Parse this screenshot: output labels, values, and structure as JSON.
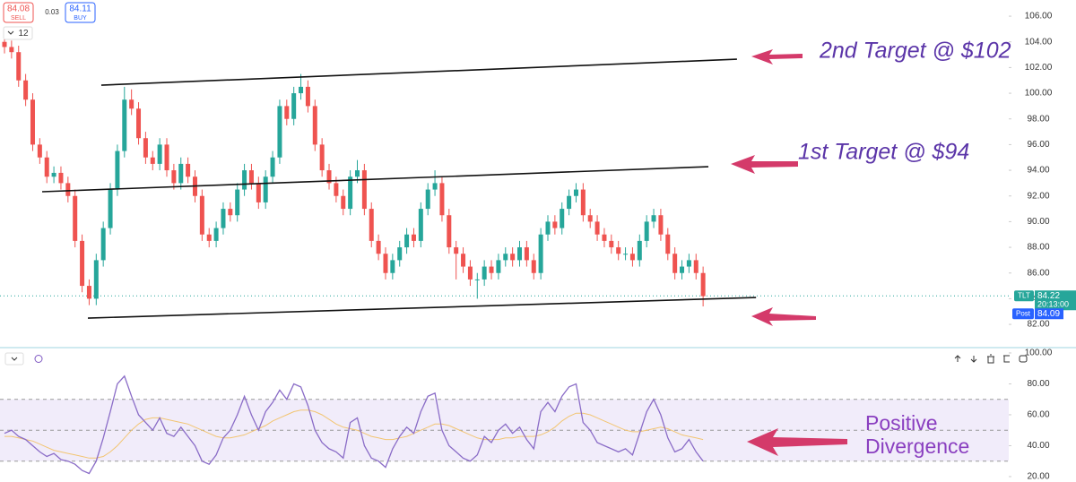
{
  "toolbar": {
    "sell_price": "84.08",
    "sell_label": "SELL",
    "spread": "0.03",
    "buy_price": "84.11",
    "buy_label": "BUY",
    "interval": "12"
  },
  "chart_data": [
    {
      "type": "candlestick",
      "symbol": "TLT",
      "last_price": 84.22,
      "countdown": "20:13:00",
      "post_label": "Post",
      "post_price": 84.09,
      "up_color": "#26a69a",
      "down_color": "#ef5350",
      "ylim": [
        80.4,
        107.26
      ],
      "yticks": [
        {
          "value": 82,
          "label": "82.00"
        },
        {
          "value": 84,
          "label": "84.00"
        },
        {
          "value": 86,
          "label": "86.00"
        },
        {
          "value": 88,
          "label": "88.00"
        },
        {
          "value": 90,
          "label": "90.00"
        },
        {
          "value": 92,
          "label": "92.00"
        },
        {
          "value": 94,
          "label": "94.00"
        },
        {
          "value": 96,
          "label": "96.00"
        },
        {
          "value": 98,
          "label": "98.00"
        },
        {
          "value": 100,
          "label": "100.00"
        },
        {
          "value": 102,
          "label": "102.00"
        },
        {
          "value": 104,
          "label": "104.00"
        },
        {
          "value": 106,
          "label": "106.00"
        }
      ],
      "candles": [
        [
          104.0,
          104.5,
          103.1,
          103.6
        ],
        [
          103.6,
          104.1,
          102.7,
          103.2
        ],
        [
          103.2,
          103.7,
          100.5,
          101.0
        ],
        [
          101.0,
          101.5,
          99.0,
          99.5
        ],
        [
          99.5,
          100.0,
          95.5,
          96.0
        ],
        [
          96.0,
          96.5,
          94.5,
          95.0
        ],
        [
          95.0,
          95.5,
          93.0,
          93.5
        ],
        [
          93.5,
          94.3,
          93.0,
          93.8
        ],
        [
          93.8,
          94.3,
          92.5,
          93.0
        ],
        [
          93.0,
          93.5,
          91.5,
          92.0
        ],
        [
          92.0,
          92.5,
          88.0,
          88.5
        ],
        [
          88.5,
          89.0,
          84.5,
          85.0
        ],
        [
          85.0,
          85.5,
          83.5,
          84.0
        ],
        [
          84.0,
          87.5,
          83.5,
          87.0
        ],
        [
          87.0,
          90.0,
          86.5,
          89.5
        ],
        [
          89.5,
          93.0,
          89.0,
          92.5
        ],
        [
          92.5,
          96.0,
          92.0,
          95.5
        ],
        [
          95.5,
          100.5,
          95.0,
          99.5
        ],
        [
          99.5,
          100.3,
          98.3,
          98.8
        ],
        [
          98.8,
          99.3,
          96.0,
          96.5
        ],
        [
          96.5,
          97.0,
          94.5,
          95.0
        ],
        [
          95.0,
          95.5,
          94.0,
          94.5
        ],
        [
          94.5,
          96.5,
          94.0,
          96.0
        ],
        [
          96.0,
          96.5,
          93.5,
          94.0
        ],
        [
          94.0,
          94.5,
          92.5,
          93.0
        ],
        [
          93.0,
          95.0,
          92.5,
          94.5
        ],
        [
          94.5,
          95.0,
          93.0,
          93.5
        ],
        [
          93.5,
          94.0,
          91.5,
          92.0
        ],
        [
          92.0,
          92.5,
          88.5,
          89.0
        ],
        [
          89.0,
          89.5,
          88.0,
          88.5
        ],
        [
          88.5,
          90.0,
          88.0,
          89.5
        ],
        [
          89.5,
          91.5,
          89.0,
          91.0
        ],
        [
          91.0,
          91.5,
          90.0,
          90.5
        ],
        [
          90.5,
          93.0,
          90.0,
          92.5
        ],
        [
          92.5,
          94.5,
          92.0,
          94.0
        ],
        [
          94.0,
          94.5,
          92.5,
          93.0
        ],
        [
          93.0,
          93.5,
          91.0,
          91.5
        ],
        [
          91.5,
          94.0,
          91.0,
          93.5
        ],
        [
          93.5,
          95.5,
          93.0,
          95.0
        ],
        [
          95.0,
          99.5,
          94.5,
          99.0
        ],
        [
          99.0,
          99.5,
          97.5,
          98.0
        ],
        [
          98.0,
          100.5,
          97.5,
          100.0
        ],
        [
          100.0,
          101.5,
          99.5,
          100.5
        ],
        [
          100.5,
          101.0,
          98.5,
          99.0
        ],
        [
          99.0,
          99.5,
          95.5,
          96.0
        ],
        [
          96.0,
          96.5,
          93.5,
          94.0
        ],
        [
          94.0,
          94.5,
          92.5,
          93.0
        ],
        [
          93.0,
          93.5,
          91.5,
          92.0
        ],
        [
          92.0,
          92.5,
          90.5,
          91.0
        ],
        [
          91.0,
          94.0,
          90.5,
          93.5
        ],
        [
          93.5,
          94.8,
          93.0,
          94.0
        ],
        [
          94.0,
          94.5,
          90.5,
          91.0
        ],
        [
          91.0,
          91.5,
          88.0,
          88.5
        ],
        [
          88.5,
          89.0,
          87.0,
          87.5
        ],
        [
          87.5,
          88.0,
          85.5,
          86.0
        ],
        [
          86.0,
          87.5,
          85.5,
          87.0
        ],
        [
          87.0,
          88.5,
          86.5,
          88.0
        ],
        [
          88.0,
          89.5,
          87.5,
          89.0
        ],
        [
          89.0,
          89.5,
          88.0,
          88.5
        ],
        [
          88.5,
          91.5,
          88.0,
          91.0
        ],
        [
          91.0,
          93.0,
          90.5,
          92.5
        ],
        [
          92.5,
          94.0,
          92.0,
          93.0
        ],
        [
          93.0,
          93.5,
          90.0,
          90.5
        ],
        [
          90.5,
          91.0,
          87.5,
          88.0
        ],
        [
          88.0,
          88.5,
          85.5,
          87.5
        ],
        [
          87.5,
          88.0,
          86.0,
          86.5
        ],
        [
          86.5,
          87.0,
          85.0,
          85.5
        ],
        [
          85.5,
          86.0,
          84.0,
          85.5
        ],
        [
          85.5,
          87.0,
          85.0,
          86.5
        ],
        [
          86.5,
          87.0,
          85.5,
          86.0
        ],
        [
          86.0,
          87.5,
          85.5,
          87.0
        ],
        [
          87.0,
          88.0,
          86.5,
          87.5
        ],
        [
          87.5,
          88.0,
          86.5,
          87.0
        ],
        [
          87.0,
          88.5,
          86.5,
          88.0
        ],
        [
          88.0,
          88.5,
          86.5,
          87.0
        ],
        [
          87.0,
          87.5,
          85.5,
          86.0
        ],
        [
          86.0,
          89.5,
          85.5,
          89.0
        ],
        [
          89.0,
          90.5,
          88.5,
          90.0
        ],
        [
          90.0,
          90.5,
          89.0,
          89.5
        ],
        [
          89.5,
          91.5,
          89.0,
          91.0
        ],
        [
          91.0,
          92.5,
          90.5,
          92.0
        ],
        [
          92.0,
          93.0,
          91.5,
          92.5
        ],
        [
          92.5,
          93.0,
          90.0,
          90.5
        ],
        [
          90.5,
          91.0,
          89.5,
          90.0
        ],
        [
          90.0,
          90.5,
          88.5,
          89.0
        ],
        [
          89.0,
          89.5,
          88.0,
          88.5
        ],
        [
          88.5,
          89.0,
          87.5,
          88.0
        ],
        [
          88.0,
          88.5,
          87.0,
          87.5
        ],
        [
          87.5,
          88.0,
          87.0,
          87.5
        ],
        [
          87.5,
          88.0,
          86.5,
          87.0
        ],
        [
          87.0,
          89.0,
          86.5,
          88.5
        ],
        [
          88.5,
          90.5,
          88.0,
          90.0
        ],
        [
          90.0,
          91.0,
          89.5,
          90.5
        ],
        [
          90.5,
          91.0,
          88.5,
          89.0
        ],
        [
          89.0,
          89.5,
          87.0,
          87.5
        ],
        [
          87.5,
          88.0,
          85.5,
          86.0
        ],
        [
          86.0,
          87.0,
          85.5,
          86.5
        ],
        [
          86.5,
          87.5,
          86.0,
          87.0
        ],
        [
          87.0,
          87.5,
          85.5,
          86.0
        ],
        [
          86.0,
          86.5,
          83.4,
          84.2
        ]
      ],
      "trendlines": [
        [
          [
            13.72,
            100.63
          ],
          [
            103.8,
            102.65
          ]
        ],
        [
          [
            5.34,
            92.33
          ],
          [
            99.75,
            94.28
          ]
        ],
        [
          [
            11.82,
            82.49
          ],
          [
            106.5,
            84.09
          ]
        ]
      ],
      "annotations": [
        "2nd Target @ $102",
        "1st Target @ $94"
      ]
    },
    {
      "type": "line",
      "ylim": [
        16.5,
        102.3
      ],
      "yticks": [
        {
          "value": 20,
          "label": "20.00"
        },
        {
          "value": 40,
          "label": "40.00"
        },
        {
          "value": 60,
          "label": "60.00"
        },
        {
          "value": 80,
          "label": "80.00"
        },
        {
          "value": 100,
          "label": "100.00"
        }
      ],
      "levels": [
        30,
        50,
        70
      ],
      "band_color": "#f1ecfa",
      "series": [
        {
          "color": "#8a6cc7",
          "values": [
            48,
            50,
            46,
            44,
            40,
            36,
            33,
            35,
            31,
            30,
            28,
            24,
            22,
            30,
            45,
            62,
            80,
            85,
            72,
            60,
            55,
            50,
            58,
            48,
            46,
            52,
            46,
            40,
            30,
            28,
            34,
            45,
            50,
            60,
            72,
            60,
            50,
            62,
            68,
            76,
            70,
            80,
            78,
            66,
            50,
            42,
            38,
            36,
            32,
            55,
            58,
            40,
            32,
            30,
            26,
            38,
            46,
            52,
            48,
            62,
            72,
            74,
            50,
            40,
            36,
            32,
            30,
            34,
            46,
            42,
            50,
            54,
            48,
            52,
            44,
            38,
            62,
            68,
            62,
            72,
            78,
            80,
            55,
            50,
            42,
            40,
            38,
            36,
            38,
            34,
            48,
            62,
            70,
            60,
            45,
            36,
            38,
            44,
            36,
            30
          ]
        },
        {
          "color": "#f2c572",
          "values": [
            46,
            46,
            45,
            44,
            43,
            41,
            39,
            37,
            36,
            35,
            34,
            33,
            32,
            32,
            33,
            36,
            40,
            45,
            50,
            54,
            57,
            58,
            58,
            57,
            56,
            55,
            54,
            52,
            50,
            48,
            46,
            45,
            45,
            46,
            47,
            49,
            51,
            53,
            56,
            58,
            60,
            62,
            63,
            63,
            62,
            60,
            57,
            54,
            52,
            51,
            50,
            48,
            46,
            45,
            44,
            44,
            45,
            46,
            48,
            50,
            52,
            54,
            54,
            53,
            51,
            49,
            47,
            45,
            44,
            44,
            44,
            45,
            45,
            46,
            46,
            46,
            47,
            49,
            52,
            56,
            59,
            61,
            61,
            60,
            58,
            56,
            54,
            52,
            50,
            49,
            49,
            50,
            51,
            52,
            51,
            49,
            47,
            46,
            45,
            44
          ]
        }
      ],
      "annotation_lines": [
        "Positive",
        "Divergence"
      ]
    }
  ]
}
